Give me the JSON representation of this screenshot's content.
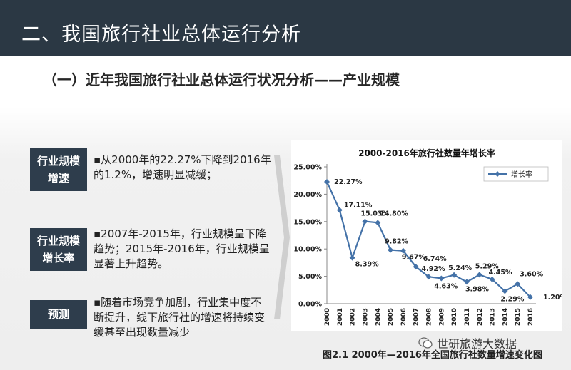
{
  "header": {
    "title": "二、我国旅行社业总体运行分析"
  },
  "subtitle": "（一）近年我国旅行社业总体运行状况分析——产业规模",
  "sections": [
    {
      "label_line1": "行业规模",
      "label_line2": "增速",
      "text": "▪从2000年的22.27%下降到2016年的1.2%，增速明显减缓；"
    },
    {
      "label_line1": "行业规模",
      "label_line2": "增长率",
      "text": "▪2007年-2015年，行业规模呈下降趋势；2015年-2016年，行业规模呈显著上升趋势。"
    },
    {
      "label_line1": "预测",
      "label_line2": "",
      "text": "▪随着市场竞争加剧，行业集中度不断提升，线下旅行社的增速将持续变缓甚至出现数量减少"
    }
  ],
  "caption": "图2.1 2000年—2016年全国旅行社数量增速变化图",
  "watermark": "世研旅游大数据",
  "colors": {
    "header": "#2b3844",
    "label": "#2e3d4c",
    "line": "#4472a8"
  },
  "chart_data": {
    "type": "line",
    "title": "2000-2016年旅行社数量年增长率",
    "x": [
      "2000",
      "2001",
      "2002",
      "2003",
      "2004",
      "2005",
      "2006",
      "2007",
      "2008",
      "2009",
      "2010",
      "2011",
      "2012",
      "2013",
      "2014",
      "2015",
      "2016"
    ],
    "series": [
      {
        "name": "增长率",
        "values": [
          22.27,
          17.11,
          8.39,
          15.03,
          14.8,
          9.82,
          9.67,
          6.74,
          4.92,
          4.63,
          5.24,
          3.98,
          5.29,
          4.45,
          2.29,
          3.6,
          1.2
        ]
      }
    ],
    "data_labels": [
      "22.27%",
      "17.11%",
      "8.39%",
      "15.03%",
      "14.80%",
      "9.82%",
      "9.67%",
      "6.74%",
      "4.92%",
      "4.63%",
      "5.24%",
      "3.98%",
      "5.29%",
      "4.45%",
      "2.29%",
      "3.60%",
      "1.20%"
    ],
    "y_ticks": [
      "0.00%",
      "5.00%",
      "10.00%",
      "15.00%",
      "20.00%",
      "25.00%"
    ],
    "ylim": [
      0,
      25
    ],
    "legend": "top-right",
    "grid": false
  }
}
